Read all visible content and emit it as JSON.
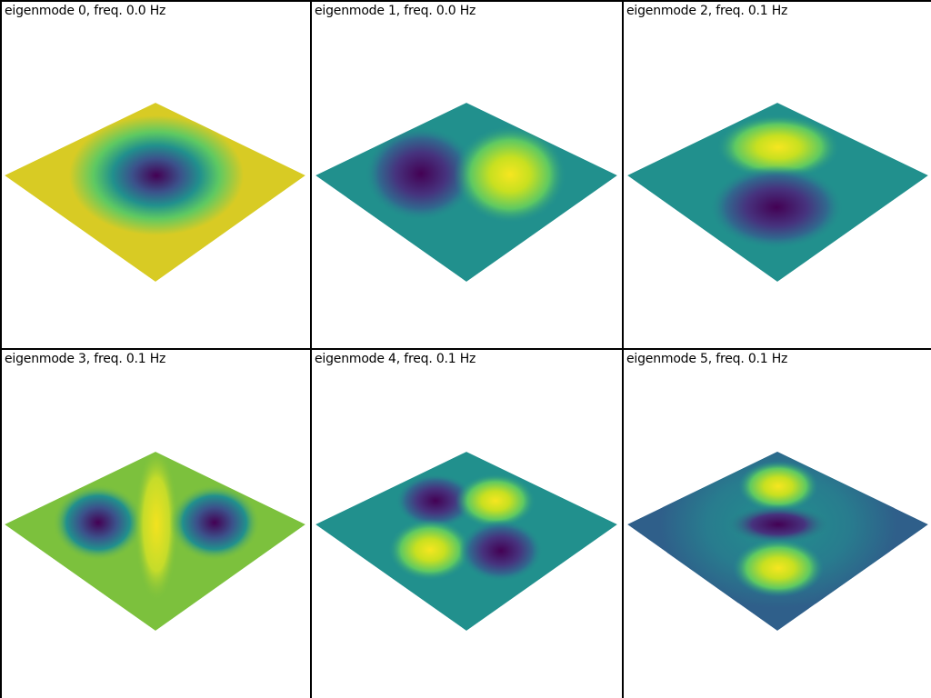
{
  "panels": [
    {
      "title": "eigenmode 0, freq. 0.0 Hz",
      "mode": 0,
      "colors": {
        "base": "#d8cb24",
        "ring": "#238a8d",
        "center": "#440154"
      }
    },
    {
      "title": "eigenmode 1, freq. 0.0 Hz",
      "mode": 1,
      "colors": {
        "base": "#21908d",
        "pos": "#f6e620",
        "neg": "#440154"
      }
    },
    {
      "title": "eigenmode 2, freq. 0.1 Hz",
      "mode": 2,
      "colors": {
        "base": "#21908d",
        "pos": "#f6e620",
        "neg": "#440154"
      }
    },
    {
      "title": "eigenmode 3, freq. 0.1 Hz",
      "mode": 3,
      "colors": {
        "base": "#7cc13d",
        "pos": "#f2e21f",
        "neg": "#440154"
      }
    },
    {
      "title": "eigenmode 4, freq. 0.1 Hz",
      "mode": 4,
      "colors": {
        "base": "#21908d",
        "pos": "#f6e620",
        "neg": "#440154"
      }
    },
    {
      "title": "eigenmode 5, freq. 0.1 Hz",
      "mode": 5,
      "colors": {
        "base": "#2f5f8a",
        "pos": "#f6e620",
        "neg": "#440154"
      }
    }
  ]
}
